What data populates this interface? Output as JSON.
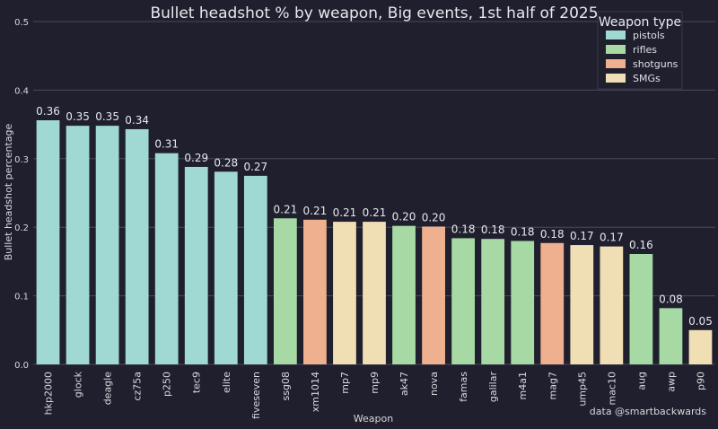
{
  "chart_data": {
    "type": "bar",
    "title": "Bullet headshot % by weapon, Big events, 1st half of 2025",
    "xlabel": "Weapon",
    "ylabel": "Bullet headshot percentage",
    "ylim": [
      0,
      0.5
    ],
    "yticks": [
      "0.0",
      "0.1",
      "0.2",
      "0.3",
      "0.4",
      "0.5"
    ],
    "grid": true,
    "legend_position": "top-right",
    "legend_title": "Weapon type",
    "colors": {
      "pistols": "#a0d9d3",
      "rifles": "#a6d9a4",
      "shotguns": "#eeb08e",
      "SMGs": "#f0deb4"
    },
    "legend": [
      {
        "name": "pistols",
        "color": "#a0d9d3"
      },
      {
        "name": "rifles",
        "color": "#a6d9a4"
      },
      {
        "name": "shotguns",
        "color": "#eeb08e"
      },
      {
        "name": "SMGs",
        "color": "#f0deb4"
      }
    ],
    "categories": [
      "hkp2000",
      "glock",
      "deagle",
      "cz75a",
      "p250",
      "tec9",
      "elite",
      "fiveseven",
      "ssg08",
      "xm1014",
      "mp7",
      "mp9",
      "ak47",
      "nova",
      "famas",
      "galilar",
      "m4a1",
      "mag7",
      "ump45",
      "mac10",
      "aug",
      "awp",
      "p90"
    ],
    "values": [
      0.356,
      0.348,
      0.348,
      0.343,
      0.308,
      0.288,
      0.281,
      0.275,
      0.213,
      0.211,
      0.208,
      0.208,
      0.202,
      0.201,
      0.184,
      0.183,
      0.18,
      0.177,
      0.174,
      0.172,
      0.161,
      0.082,
      0.05
    ],
    "labels": [
      "0.36",
      "0.35",
      "0.35",
      "0.34",
      "0.31",
      "0.29",
      "0.28",
      "0.27",
      "0.21",
      "0.21",
      "0.21",
      "0.21",
      "0.20",
      "0.20",
      "0.18",
      "0.18",
      "0.18",
      "0.18",
      "0.17",
      "0.17",
      "0.16",
      "0.08",
      "0.05"
    ],
    "groups": [
      "pistols",
      "pistols",
      "pistols",
      "pistols",
      "pistols",
      "pistols",
      "pistols",
      "pistols",
      "rifles",
      "shotguns",
      "SMGs",
      "SMGs",
      "rifles",
      "shotguns",
      "rifles",
      "rifles",
      "rifles",
      "shotguns",
      "SMGs",
      "SMGs",
      "rifles",
      "rifles",
      "SMGs"
    ]
  },
  "credit": "data @smartbackwards"
}
